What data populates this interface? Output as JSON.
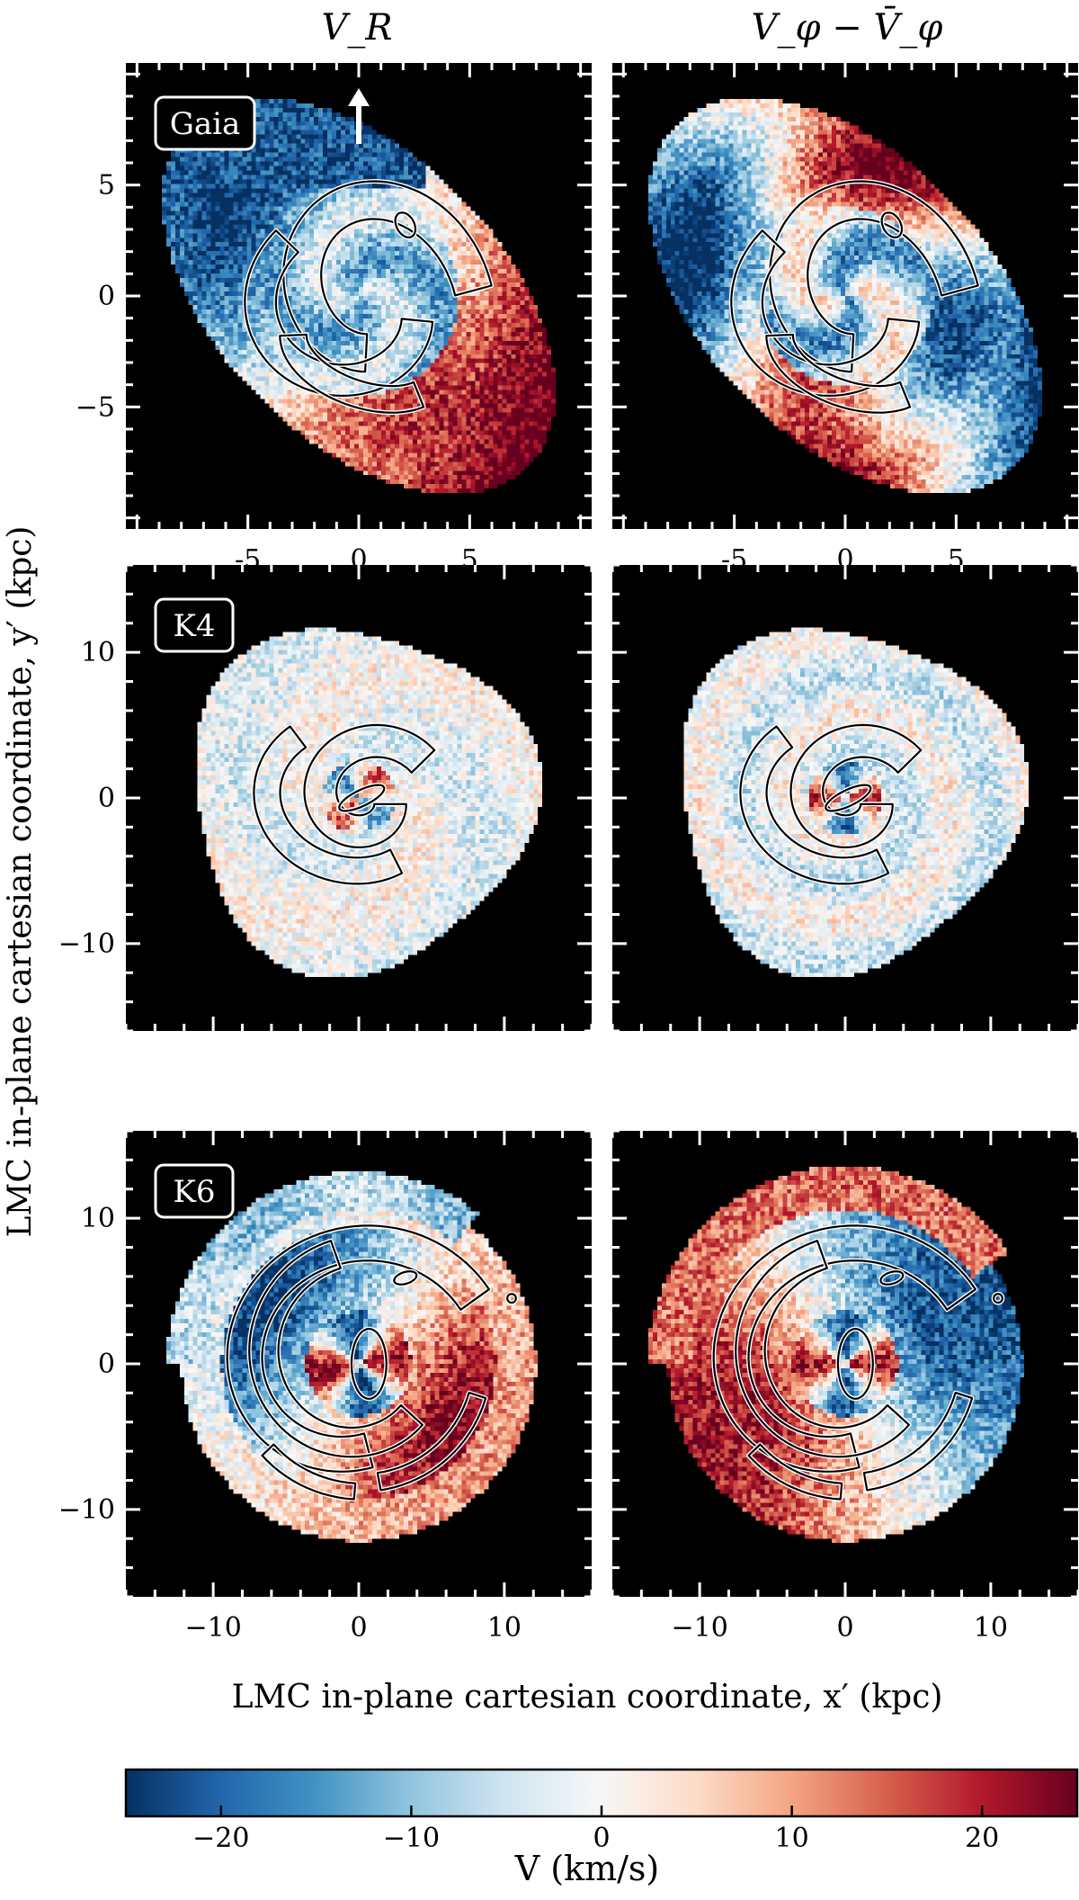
{
  "figure": {
    "ylabel": "LMC in-plane cartesian coordinate, y′ (kpc)",
    "xlabel": "LMC in-plane cartesian coordinate, x′ (kpc)",
    "columns": [
      "V_R",
      "V_φ − V̄_φ"
    ]
  },
  "chart_data": [
    {
      "type": "heatmap",
      "row": 0,
      "col": 0,
      "column_title": "V_R",
      "badge": "Gaia",
      "show_arrow": true,
      "xlim": [
        -10.5,
        10.5
      ],
      "ylim": [
        -10.5,
        10.5
      ],
      "xticks": [
        "-5",
        "0",
        "5"
      ],
      "xtick_values": [
        -5,
        0,
        5
      ],
      "yticks": [
        "5",
        "0",
        "−5"
      ],
      "ytick_values": [
        5,
        0,
        -5
      ],
      "show_xtick_labels": true,
      "show_ytick_labels": true,
      "field": "gaia_vr"
    },
    {
      "type": "heatmap",
      "row": 0,
      "col": 1,
      "column_title": "V_φ − V̄_φ",
      "badge": "",
      "show_arrow": false,
      "xlim": [
        -10.5,
        10.5
      ],
      "ylim": [
        -10.5,
        10.5
      ],
      "xticks": [
        "-5",
        "0",
        "5"
      ],
      "xtick_values": [
        -5,
        0,
        5
      ],
      "yticks": [],
      "ytick_values": [],
      "show_xtick_labels": true,
      "show_ytick_labels": false,
      "field": "gaia_vphi"
    },
    {
      "type": "heatmap",
      "row": 1,
      "col": 0,
      "column_title": "",
      "badge": "K4",
      "show_arrow": false,
      "xlim": [
        -16,
        16
      ],
      "ylim": [
        -16,
        16
      ],
      "xticks": [],
      "xtick_values": [],
      "yticks": [
        "10",
        "0",
        "−10"
      ],
      "ytick_values": [
        10,
        0,
        -10
      ],
      "show_xtick_labels": false,
      "show_ytick_labels": true,
      "field": "k4_vr"
    },
    {
      "type": "heatmap",
      "row": 1,
      "col": 1,
      "column_title": "",
      "badge": "",
      "show_arrow": false,
      "xlim": [
        -16,
        16
      ],
      "ylim": [
        -16,
        16
      ],
      "xticks": [],
      "xtick_values": [],
      "yticks": [],
      "ytick_values": [],
      "show_xtick_labels": false,
      "show_ytick_labels": false,
      "field": "k4_vphi"
    },
    {
      "type": "heatmap",
      "row": 2,
      "col": 0,
      "column_title": "",
      "badge": "K6",
      "show_arrow": false,
      "xlim": [
        -16,
        16
      ],
      "ylim": [
        -16,
        16
      ],
      "xticks": [
        "−10",
        "0",
        "10"
      ],
      "xtick_values": [
        -10,
        0,
        10
      ],
      "yticks": [
        "10",
        "0",
        "−10"
      ],
      "ytick_values": [
        10,
        0,
        -10
      ],
      "show_xtick_labels": true,
      "show_ytick_labels": true,
      "field": "k6_vr"
    },
    {
      "type": "heatmap",
      "row": 2,
      "col": 1,
      "column_title": "",
      "badge": "",
      "show_arrow": false,
      "xlim": [
        -16,
        16
      ],
      "ylim": [
        -16,
        16
      ],
      "xticks": [
        "−10",
        "0",
        "10"
      ],
      "xtick_values": [
        -10,
        0,
        10
      ],
      "yticks": [],
      "ytick_values": [],
      "show_xtick_labels": true,
      "show_ytick_labels": false,
      "field": "k6_vphi"
    }
  ],
  "colorbar": {
    "label": "V (km/s)",
    "min": -25,
    "max": 25,
    "ticks": [
      -20,
      -10,
      0,
      10,
      20
    ],
    "tick_labels": [
      "−20",
      "−10",
      "0",
      "10",
      "20"
    ],
    "colormap": "RdBu_r",
    "colors": [
      "#053061",
      "#2166ac",
      "#4393c3",
      "#92c5de",
      "#d1e5f0",
      "#f7f7f7",
      "#fddbc7",
      "#f4a582",
      "#d6604d",
      "#b2182b",
      "#67001f"
    ]
  },
  "colors": {
    "background": "#000000",
    "contour": "#ffffff",
    "contour_dark": "#000000"
  }
}
